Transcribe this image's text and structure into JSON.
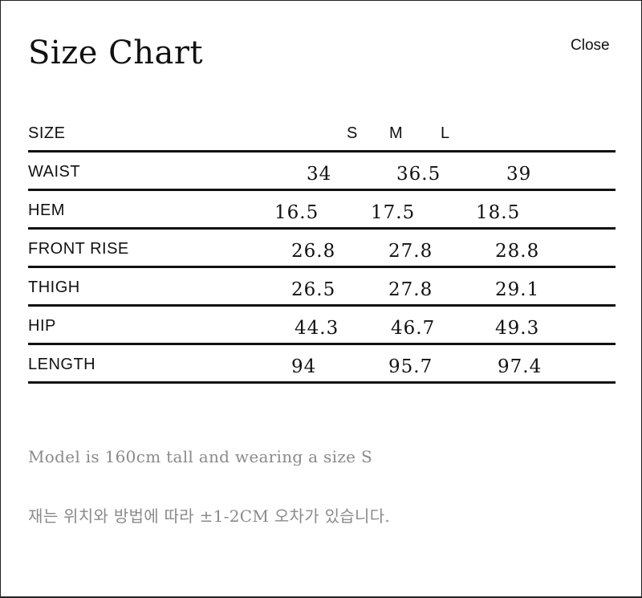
{
  "dialog": {
    "title": "Size Chart",
    "close_label": "Close"
  },
  "table": {
    "header": {
      "label": "SIZE",
      "sizes": [
        "S",
        "M",
        "L"
      ]
    },
    "rows": [
      {
        "label": "WAIST",
        "values": [
          "34",
          "36.5",
          "39"
        ]
      },
      {
        "label": "HEM",
        "values": [
          "16.5",
          "17.5",
          "18.5"
        ]
      },
      {
        "label": "FRONT RISE",
        "values": [
          "26.8",
          "27.8",
          "28.8"
        ]
      },
      {
        "label": "THIGH",
        "values": [
          "26.5",
          "27.8",
          "29.1"
        ]
      },
      {
        "label": "HIP",
        "values": [
          "44.3",
          "46.7",
          "49.3"
        ]
      },
      {
        "label": "LENGTH",
        "values": [
          "94",
          "95.7",
          "97.4"
        ]
      }
    ]
  },
  "notes": {
    "model": "Model is 160cm tall and wearing a size S",
    "tolerance": "재는 위치와 방법에 따라 ±1-2CM 오차가 있습니다."
  }
}
